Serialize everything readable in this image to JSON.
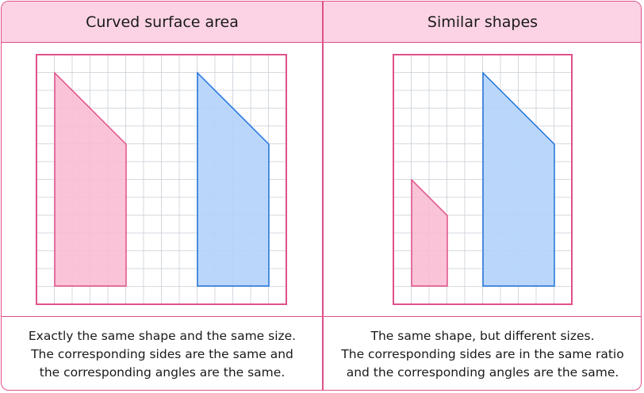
{
  "panels": [
    {
      "title": "Curved surface area",
      "caption_lines": [
        "Exactly the same shape and the same size.",
        "The corresponding sides are the same and",
        "the corresponding angles are the same."
      ]
    },
    {
      "title": "Similar shapes",
      "caption_lines": [
        "The same shape, but different sizes.",
        "The corresponding sides are in the same ratio",
        "and the corresponding angles are the same."
      ]
    }
  ],
  "colors": {
    "border": "#e0508a",
    "header_bg": "#fbd3e4",
    "grid": "#c9ced6",
    "pink_fill": "#f9bcd3",
    "pink_stroke": "#e0508a",
    "blue_fill": "#b3d3fb",
    "blue_stroke": "#1f72d8"
  }
}
